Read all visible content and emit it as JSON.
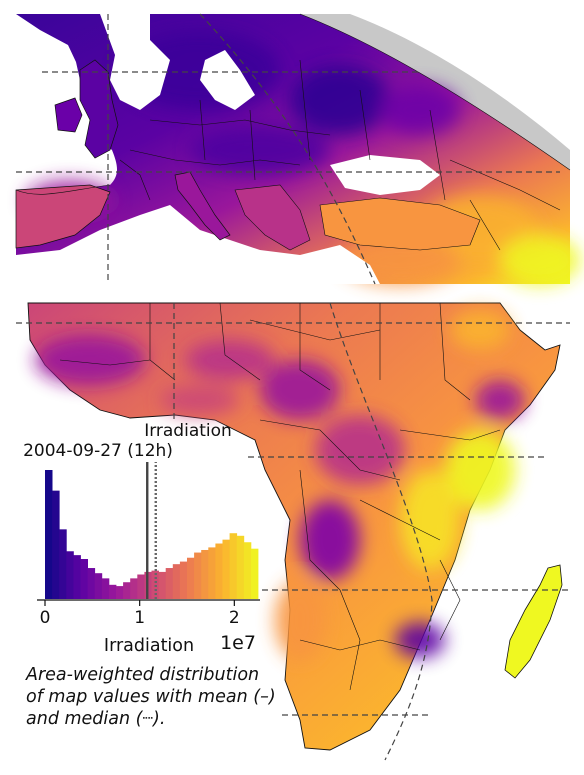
{
  "panel": {
    "title_line1": "Irradiation",
    "title_line2": "2004-09-27 (12h)"
  },
  "caption": {
    "line1": "Area-weighted distribution",
    "line2": "of map values with mean (–)",
    "line3": "and median (┈)."
  },
  "colors": {
    "ocean": "#ffffff",
    "border": "#111111",
    "grid": "#444444",
    "nodata": "#c8c8c8",
    "colormap": [
      "#0d0887",
      "#5b02a3",
      "#9a179b",
      "#cb4678",
      "#eb7852",
      "#fbb32f",
      "#eff821"
    ],
    "mean_line": "#444444"
  },
  "chart_data": {
    "type": "bar",
    "title": "Irradiation 2004-09-27 (12h)",
    "xlabel": "Irradiation",
    "x_scale_label": "1e7",
    "xlim": [
      0,
      2.25
    ],
    "ylim": [
      0,
      1
    ],
    "x_ticks": [
      0,
      1,
      2
    ],
    "x_tick_labels": [
      "0",
      "1",
      "2"
    ],
    "bin_width": 0.075,
    "bin_start": 0.0,
    "values": [
      1.0,
      0.84,
      0.54,
      0.37,
      0.34,
      0.31,
      0.24,
      0.2,
      0.16,
      0.11,
      0.1,
      0.13,
      0.16,
      0.19,
      0.21,
      0.22,
      0.21,
      0.24,
      0.27,
      0.29,
      0.32,
      0.36,
      0.38,
      0.4,
      0.43,
      0.46,
      0.51,
      0.49,
      0.44,
      0.39
    ],
    "mean": 1.08,
    "median": 1.17,
    "grid": false
  }
}
